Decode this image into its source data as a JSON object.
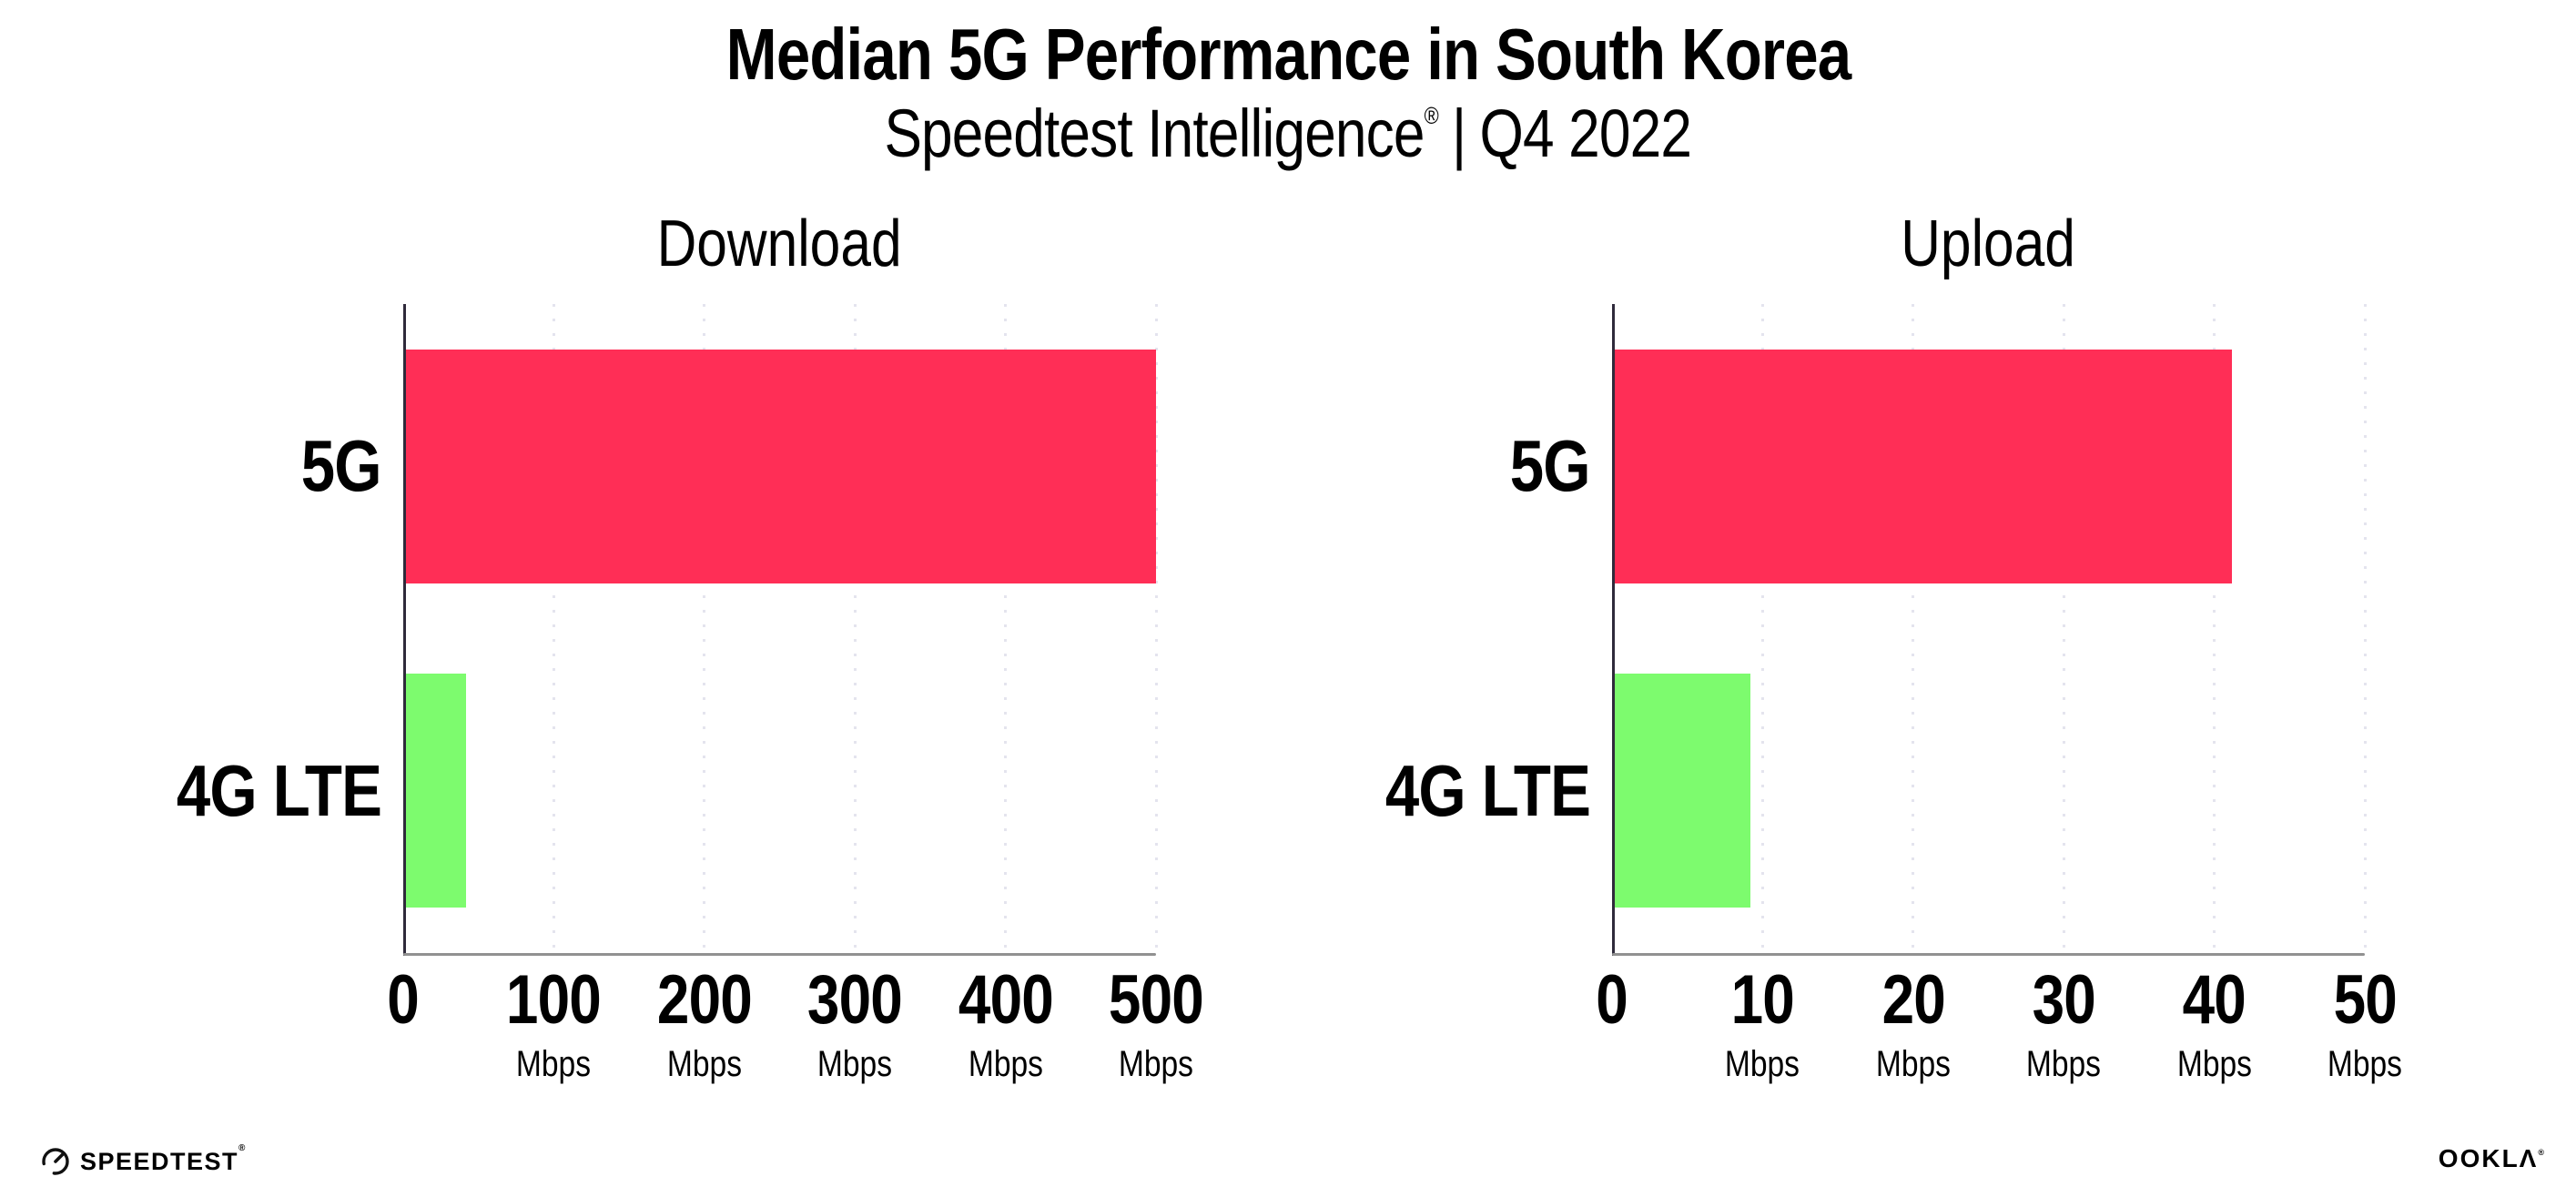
{
  "header": {
    "title": "Median 5G Performance in South Korea",
    "subtitle": {
      "brand": "Speedtest Intelligence",
      "registered_mark": "®",
      "separator": "|",
      "period": "Q4 2022"
    }
  },
  "chart_data": [
    {
      "type": "bar",
      "orientation": "horizontal",
      "title": "Download",
      "categories": [
        "5G",
        "4G LTE"
      ],
      "values": [
        498,
        40
      ],
      "unit": "Mbps",
      "xlim": [
        0,
        500
      ],
      "xticks": [
        0,
        100,
        200,
        300,
        400,
        500
      ],
      "xtick_unit": "Mbps",
      "grid": "dotted-vertical",
      "legend": "none",
      "bar_colors": [
        "#ff2e56",
        "#7dfb6e"
      ]
    },
    {
      "type": "bar",
      "orientation": "horizontal",
      "title": "Upload",
      "categories": [
        "5G",
        "4G LTE"
      ],
      "values": [
        41,
        9
      ],
      "unit": "Mbps",
      "xlim": [
        0,
        50
      ],
      "xticks": [
        0,
        10,
        20,
        30,
        40,
        50
      ],
      "xtick_unit": "Mbps",
      "grid": "dotted-vertical",
      "legend": "none",
      "bar_colors": [
        "#ff2e56",
        "#7dfb6e"
      ]
    }
  ],
  "footer": {
    "speedtest_logo_text": "SPEEDTEST",
    "speedtest_trademark": "®",
    "ookla_logo_text": "OOKLΛ",
    "ookla_trademark": "®"
  },
  "colors": {
    "bar_5g": "#ff2e56",
    "bar_4g_lte": "#7dfb6e",
    "gridline": "#e4e4ee",
    "x_axis_line": "#919191",
    "y_axis_line": "#2f2a3b",
    "text": "#000000",
    "background": "#ffffff"
  }
}
